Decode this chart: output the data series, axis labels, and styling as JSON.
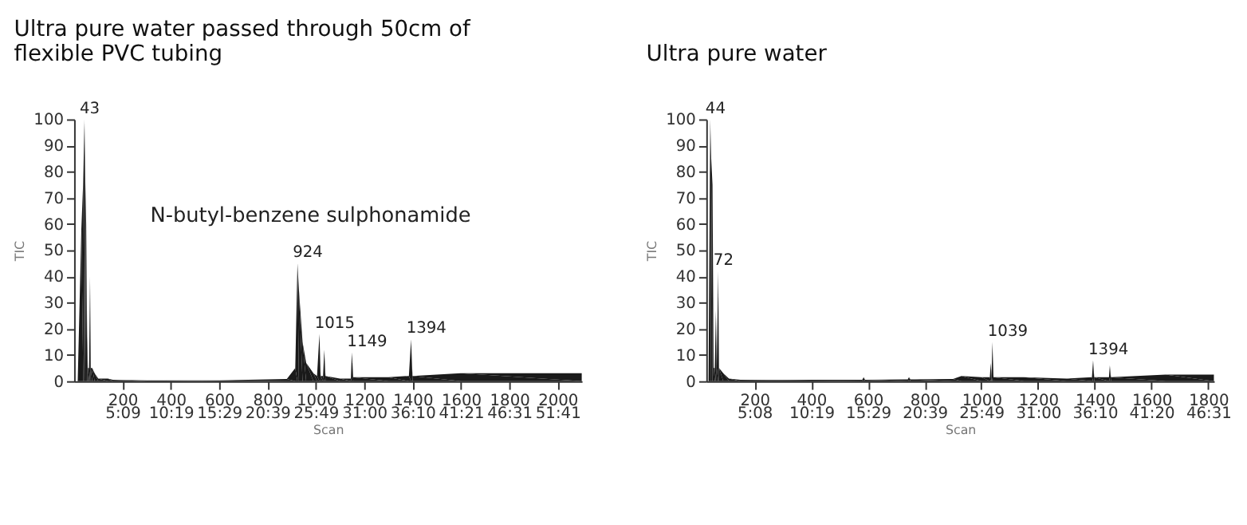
{
  "chart_data": [
    {
      "type": "area",
      "title": "Ultra pure water passed through 50cm of flexible PVC tubing",
      "xlabel": "Scan",
      "ylabel": "TIC",
      "xlim": [
        0,
        2100
      ],
      "ylim": [
        0,
        100
      ],
      "yticks": [
        0,
        10,
        20,
        30,
        40,
        50,
        60,
        70,
        80,
        90,
        100
      ],
      "xticks": [
        200,
        400,
        600,
        800,
        1000,
        1200,
        1400,
        1600,
        1800,
        2000
      ],
      "x2lim": [
        -0.02,
        54.27
      ],
      "x2ticks": [
        {
          "value": 5.15,
          "label": "5:09"
        },
        {
          "value": 10.317,
          "label": "10:19"
        },
        {
          "value": 15.483,
          "label": "15:29"
        },
        {
          "value": 20.65,
          "label": "20:39"
        },
        {
          "value": 25.817,
          "label": "25:49"
        },
        {
          "value": 31.0,
          "label": "31:00"
        },
        {
          "value": 36.167,
          "label": "36:10"
        },
        {
          "value": 41.35,
          "label": "41:21"
        },
        {
          "value": 46.517,
          "label": "46:31"
        },
        {
          "value": 51.683,
          "label": "51:41"
        }
      ],
      "grid": false,
      "series": [
        {
          "color": "#1a1a1a",
          "x": [
            15,
            30,
            38,
            43,
            46,
            50,
            54,
            57,
            62,
            66,
            69,
            75,
            85,
            100,
            140,
            160,
            300,
            600,
            880,
            915,
            924,
            930,
            945,
            960,
            990,
            1005,
            1015,
            1020,
            1030,
            1035,
            1040,
            1100,
            1145,
            1149,
            1155,
            1300,
            1385,
            1394,
            1400,
            1600,
            2100
          ],
          "values": [
            0,
            58,
            77,
            100,
            78,
            60,
            17,
            5,
            5,
            40,
            5,
            5,
            3,
            1,
            1,
            0.5,
            0.3,
            0.3,
            0.8,
            5,
            45,
            35,
            15,
            7,
            3,
            2,
            18,
            2,
            2,
            12,
            2,
            1,
            1,
            11,
            1.5,
            1.5,
            2,
            16,
            2,
            3,
            3
          ]
        }
      ],
      "annotations": [
        {
          "text": "43",
          "x": 43,
          "y": 100
        },
        "N-butyl-benzene sulphonamide",
        {
          "text": "924",
          "x": 924,
          "y": 45
        },
        {
          "text": "1015",
          "x": 1015,
          "y": 18
        },
        {
          "text": "1149",
          "x": 1149,
          "y": 11
        },
        {
          "text": "1394",
          "x": 1394,
          "y": 16
        }
      ]
    },
    {
      "type": "area",
      "title": "Ultra pure water",
      "xlabel": "Scan",
      "ylabel": "TIC",
      "xlim": [
        30,
        1820
      ],
      "ylim": [
        0,
        100
      ],
      "yticks": [
        0,
        10,
        20,
        30,
        40,
        50,
        60,
        70,
        80,
        90,
        100
      ],
      "xticks": [
        200,
        400,
        600,
        800,
        1000,
        1200,
        1400,
        1600,
        1800
      ],
      "x2lim": [
        0.736,
        47.034
      ],
      "x2ticks": [
        {
          "value": 5.133,
          "label": "5:08"
        },
        {
          "value": 10.317,
          "label": "10:19"
        },
        {
          "value": 15.483,
          "label": "15:29"
        },
        {
          "value": 20.65,
          "label": "20:39"
        },
        {
          "value": 25.817,
          "label": "25:49"
        },
        {
          "value": 31.0,
          "label": "31:00"
        },
        {
          "value": 36.167,
          "label": "36:10"
        },
        {
          "value": 41.333,
          "label": "41:20"
        },
        {
          "value": 46.517,
          "label": "46:31"
        }
      ],
      "grid": false,
      "series": [
        {
          "color": "#1a1a1a",
          "x": [
            38,
            44,
            47,
            52,
            56,
            60,
            64,
            67,
            72,
            75,
            90,
            110,
            150,
            580,
            585,
            590,
            740,
            745,
            750,
            900,
            930,
            1000,
            1030,
            1033,
            1036,
            1039,
            1043,
            1150,
            1300,
            1390,
            1394,
            1398,
            1450,
            1453,
            1457,
            1650,
            1820
          ],
          "values": [
            0,
            100,
            86,
            75,
            5,
            5,
            27,
            5,
            42,
            5,
            3,
            1,
            0.5,
            0.5,
            1.5,
            0.5,
            0.7,
            1.5,
            0.7,
            0.8,
            2,
            1.5,
            1.5,
            7,
            2,
            15,
            1.5,
            1.5,
            1,
            1.5,
            8,
            1.5,
            1.5,
            6,
            1.5,
            2.5,
            2.5
          ]
        }
      ],
      "annotations": [
        {
          "text": "44",
          "x": 44,
          "y": 100
        },
        {
          "text": "72",
          "x": 72,
          "y": 42
        },
        {
          "text": "1039",
          "x": 1039,
          "y": 15
        },
        {
          "text": "1394",
          "x": 1394,
          "y": 8
        }
      ]
    }
  ]
}
